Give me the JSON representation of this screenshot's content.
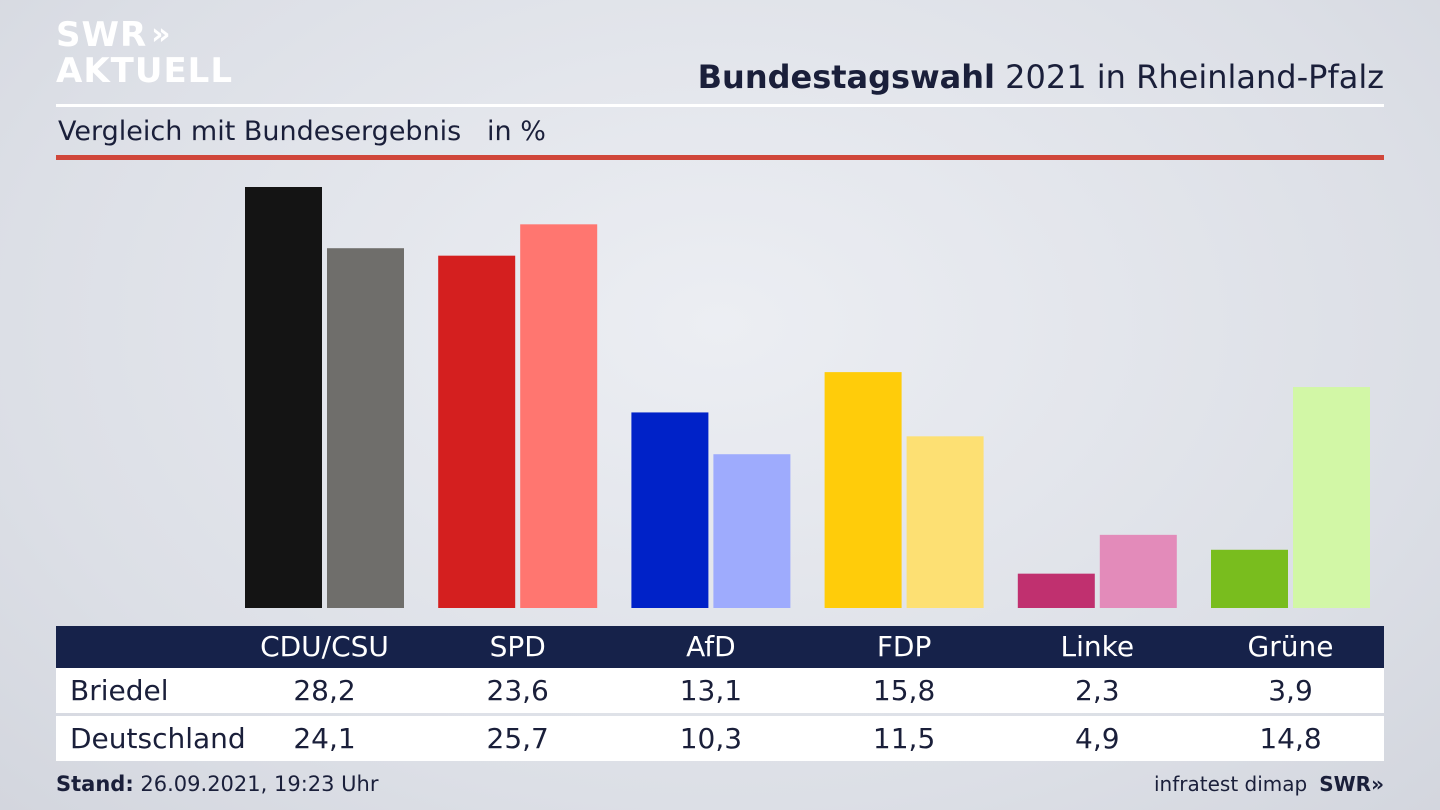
{
  "header": {
    "logo_line1": "SWR",
    "logo_arrows": "»",
    "logo_line2": "AKTUELL",
    "title_bold": "Bundestagswahl",
    "title_rest": " 2021 in Rheinland-Pfalz",
    "subtitle": "Vergleich mit Bundesergebnis   in %"
  },
  "chart_data": {
    "type": "bar",
    "categories": [
      "CDU/CSU",
      "SPD",
      "AfD",
      "FDP",
      "Linke",
      "Grüne"
    ],
    "series": [
      {
        "name": "Briedel",
        "values": [
          28.2,
          23.6,
          13.1,
          15.8,
          2.3,
          3.9
        ]
      },
      {
        "name": "Deutschland",
        "values": [
          24.1,
          25.7,
          10.3,
          11.5,
          4.9,
          14.8
        ]
      }
    ],
    "colors": {
      "Briedel": [
        "#141414",
        "#d41f1f",
        "#0022c8",
        "#ffcc0a",
        "#c0306f",
        "#79bd1e"
      ],
      "Deutschland": [
        "#6f6e6b",
        "#ff7670",
        "#9eabfd",
        "#fde073",
        "#e38bba",
        "#d2f7a6"
      ]
    },
    "ylim": [
      0,
      28.2
    ],
    "grid": false,
    "title": "Bundestagswahl 2021 in Rheinland-Pfalz",
    "ylabel": "in %"
  },
  "footer": {
    "stand_label": "Stand:",
    "stand_value": " 26.09.2021, 19:23 Uhr",
    "source": "infratest dimap",
    "brand": "SWR»"
  }
}
